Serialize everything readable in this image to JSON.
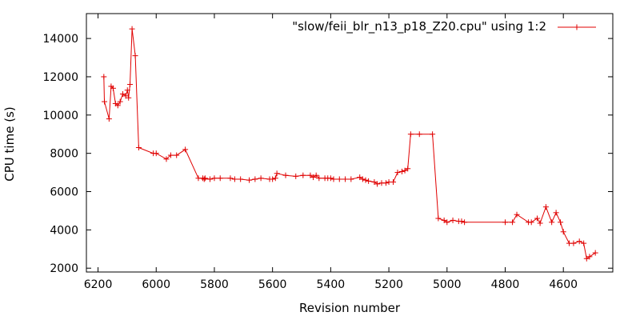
{
  "chart_data": {
    "type": "line",
    "xlabel": "Revision number",
    "ylabel": "CPU time (s)",
    "xlim": [
      6240,
      4430
    ],
    "ylim": [
      1800,
      15300
    ],
    "x_reversed": true,
    "xticks": [
      6200,
      6000,
      5800,
      5600,
      5400,
      5200,
      5000,
      4800,
      4600
    ],
    "yticks": [
      2000,
      4000,
      6000,
      8000,
      10000,
      12000,
      14000
    ],
    "grid": false,
    "legend_position": "top-right",
    "series": [
      {
        "name": "\"slow/feii_blr_n13_p18_Z20.cpu\" using 1:2",
        "color": "#e00000",
        "marker": "plus",
        "x": [
          6180,
          6178,
          6162,
          6155,
          6148,
          6140,
          6132,
          6124,
          6115,
          6105,
          6099,
          6095,
          6090,
          6083,
          6072,
          6060,
          6010,
          6000,
          5965,
          5950,
          5930,
          5900,
          5855,
          5840,
          5835,
          5832,
          5815,
          5800,
          5780,
          5745,
          5730,
          5710,
          5680,
          5660,
          5640,
          5610,
          5600,
          5590,
          5585,
          5555,
          5520,
          5495,
          5470,
          5460,
          5450,
          5440,
          5420,
          5410,
          5400,
          5390,
          5370,
          5350,
          5330,
          5300,
          5290,
          5280,
          5270,
          5250,
          5240,
          5225,
          5210,
          5200,
          5185,
          5170,
          5155,
          5145,
          5135,
          5125,
          5095,
          5050,
          5030,
          5010,
          5000,
          4980,
          4960,
          4950,
          4940,
          4800,
          4775,
          4760,
          4720,
          4710,
          4690,
          4680,
          4660,
          4640,
          4625,
          4610,
          4600,
          4580,
          4565,
          4545,
          4530,
          4520,
          4510,
          4490
        ],
        "y": [
          12000,
          10700,
          9800,
          11500,
          11400,
          10600,
          10500,
          10700,
          11100,
          11000,
          11300,
          10900,
          11600,
          14500,
          13100,
          8300,
          8000,
          8000,
          7700,
          7900,
          7900,
          8200,
          6700,
          6700,
          6650,
          6700,
          6650,
          6700,
          6700,
          6700,
          6650,
          6650,
          6600,
          6650,
          6700,
          6650,
          6650,
          6700,
          6950,
          6850,
          6800,
          6850,
          6850,
          6750,
          6850,
          6700,
          6700,
          6700,
          6700,
          6650,
          6650,
          6650,
          6650,
          6750,
          6650,
          6600,
          6550,
          6500,
          6400,
          6450,
          6450,
          6500,
          6500,
          7000,
          7050,
          7100,
          7200,
          9000,
          9000,
          9000,
          4600,
          4500,
          4400,
          4500,
          4450,
          4450,
          4400,
          4400,
          4400,
          4800,
          4400,
          4400,
          4600,
          4350,
          5200,
          4400,
          4900,
          4400,
          3900,
          3300,
          3300,
          3400,
          3300,
          2500,
          2600,
          2800
        ]
      }
    ]
  }
}
